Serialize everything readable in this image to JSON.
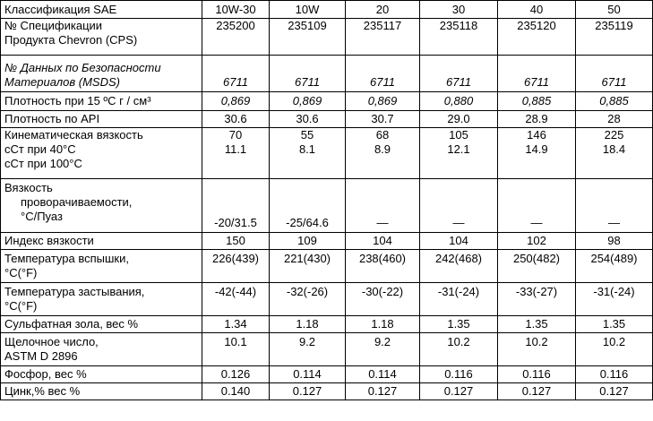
{
  "table": {
    "header": [
      "Классификация SAE",
      "10W-30",
      "10W",
      "20",
      "30",
      "40",
      "50"
    ],
    "rows": [
      [
        [
          "№ Спецификации",
          "Продукта Chevron (CPS)"
        ],
        "235200",
        "235109",
        "235117",
        "235118",
        "235120",
        "235119"
      ],
      [
        [
          "№ Данных по Безопасности",
          "Материалов (MSDS)"
        ],
        "6711",
        "6711",
        "6711",
        "6711",
        "6711",
        "6711"
      ],
      [
        "Плотность при 15 ºC г / см³",
        "0,869",
        "0,869",
        "0,869",
        "0,880",
        "0,885",
        "0,885"
      ],
      [
        "Плотность по API",
        "30.6",
        "30.6",
        "30.7",
        "29.0",
        "28.9",
        "28"
      ],
      [
        [
          "Кинематическая вязкость",
          "сСт при 40°C",
          "сСт при 100°C"
        ],
        [
          "70",
          "11.1"
        ],
        [
          "55",
          "8.1"
        ],
        [
          "68",
          "8.9"
        ],
        [
          "105",
          "12.1"
        ],
        [
          "146",
          "14.9"
        ],
        [
          "225",
          "18.4"
        ]
      ],
      [
        [
          "Вязкость",
          "проворачиваемости,",
          "°C/Пуаз"
        ],
        "-20/31.5",
        "-25/64.6",
        "—",
        "—",
        "—",
        "—"
      ],
      [
        "Индекс вязкости",
        "150",
        "109",
        "104",
        "104",
        "102",
        "98"
      ],
      [
        [
          "Температура вспышки,",
          "°C(°F)"
        ],
        "226(439)",
        "221(430)",
        "238(460)",
        "242(468)",
        "250(482)",
        "254(489)"
      ],
      [
        [
          "Температура застывания,",
          "°C(°F)"
        ],
        "-42(-44)",
        "-32(-26)",
        "-30(-22)",
        "-31(-24)",
        "-33(-27)",
        "-31(-24)"
      ],
      [
        "Сульфатная зола, вес %",
        "1.34",
        "1.18",
        "1.18",
        "1.35",
        "1.35",
        "1.35"
      ],
      [
        [
          "Щелочное число,",
          "ASTM D 2896"
        ],
        "10.1",
        "9.2",
        "9.2",
        "10.2",
        "10.2",
        "10.2"
      ],
      [
        "Фосфор, вес %",
        "0.126",
        "0.114",
        "0.114",
        "0.116",
        "0.116",
        "0.116"
      ],
      [
        "Цинк,% вес %",
        "0.140",
        "0.127",
        "0.127",
        "0.127",
        "0.127",
        "0.127"
      ]
    ]
  }
}
